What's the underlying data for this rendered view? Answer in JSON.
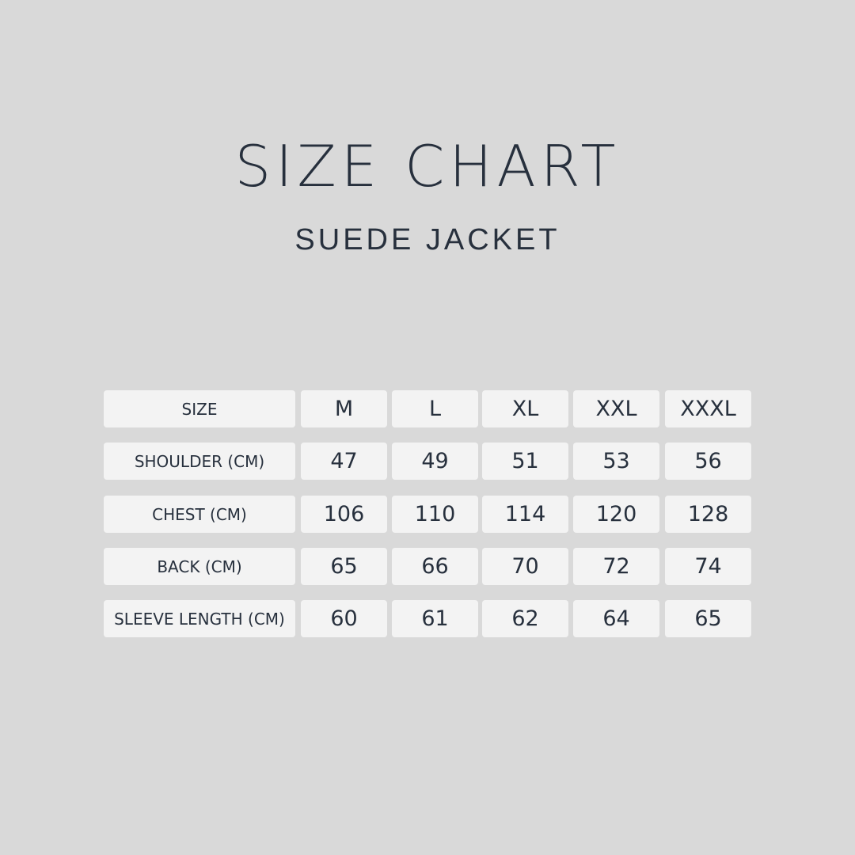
{
  "title": "SIZE CHART",
  "subtitle": "SUEDE JACKET",
  "table": {
    "header": [
      "SIZE",
      "M",
      "L",
      "XL",
      "XXL",
      "XXXL"
    ],
    "rows": [
      [
        "SHOULDER (CM)",
        "47",
        "49",
        "51",
        "53",
        "56"
      ],
      [
        "CHEST  (CM)",
        "106",
        "110",
        "114",
        "120",
        "128"
      ],
      [
        "BACK (CM)",
        "65",
        "66",
        "70",
        "72",
        "74"
      ],
      [
        "SLEEVE LENGTH (CM)",
        "60",
        "61",
        "62",
        "64",
        "65"
      ]
    ]
  },
  "colors": {
    "background": "#d9d9d9",
    "cell": "#f3f3f3",
    "text": "#27303d"
  }
}
